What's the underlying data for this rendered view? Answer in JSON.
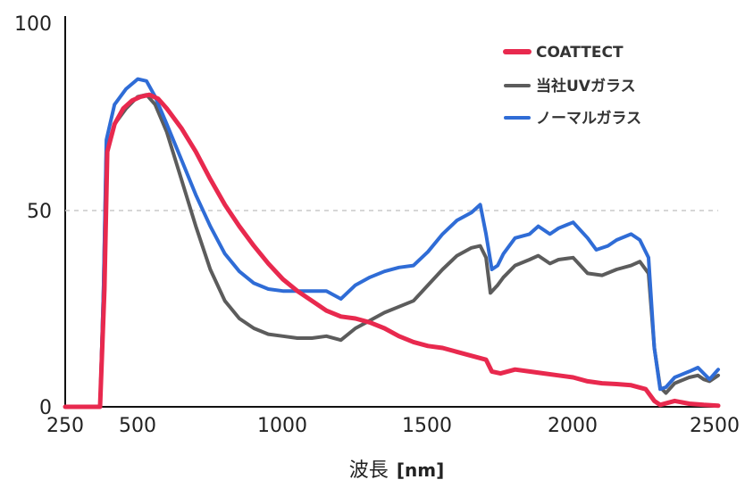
{
  "chart_data": {
    "type": "line",
    "title": "",
    "xlabel": "波長",
    "xlabel_unit": "[nm]",
    "ylabel": "",
    "xlim": [
      250,
      2500
    ],
    "ylim": [
      0,
      100
    ],
    "x_ticks": [
      "250",
      "500",
      "1000",
      "1500",
      "2000",
      "2500"
    ],
    "x_tick_values": [
      250,
      500,
      1000,
      1500,
      2000,
      2500
    ],
    "y_ticks": [
      "0",
      "50",
      "100"
    ],
    "y_tick_values": [
      0,
      50,
      100
    ],
    "grid": "dashed horizontal line at 50",
    "legend_position": "top-right",
    "series": [
      {
        "name": "COATTECT",
        "color": "#e8294e",
        "points": [
          [
            250,
            0
          ],
          [
            370,
            0
          ],
          [
            385,
            30
          ],
          [
            395,
            65
          ],
          [
            420,
            72
          ],
          [
            450,
            76
          ],
          [
            480,
            78
          ],
          [
            510,
            79
          ],
          [
            540,
            79.5
          ],
          [
            570,
            78.5
          ],
          [
            600,
            76
          ],
          [
            650,
            71
          ],
          [
            700,
            65
          ],
          [
            750,
            58
          ],
          [
            800,
            51.5
          ],
          [
            850,
            46
          ],
          [
            900,
            41
          ],
          [
            950,
            36.5
          ],
          [
            1000,
            32.5
          ],
          [
            1050,
            29.5
          ],
          [
            1100,
            27
          ],
          [
            1150,
            24.5
          ],
          [
            1200,
            23
          ],
          [
            1250,
            22.5
          ],
          [
            1300,
            21.5
          ],
          [
            1350,
            20
          ],
          [
            1400,
            18
          ],
          [
            1450,
            16.5
          ],
          [
            1500,
            15.5
          ],
          [
            1550,
            15
          ],
          [
            1600,
            14
          ],
          [
            1650,
            13
          ],
          [
            1700,
            12
          ],
          [
            1720,
            9
          ],
          [
            1750,
            8.5
          ],
          [
            1800,
            9.5
          ],
          [
            1850,
            9
          ],
          [
            1900,
            8.5
          ],
          [
            1950,
            8
          ],
          [
            2000,
            7.5
          ],
          [
            2050,
            6.5
          ],
          [
            2100,
            6
          ],
          [
            2150,
            5.8
          ],
          [
            2200,
            5.5
          ],
          [
            2250,
            4.5
          ],
          [
            2280,
            1.5
          ],
          [
            2300,
            0.5
          ],
          [
            2350,
            1.5
          ],
          [
            2400,
            0.8
          ],
          [
            2450,
            0.5
          ],
          [
            2500,
            0.3
          ]
        ]
      },
      {
        "name": "当社UVガラス",
        "color": "#5c5c5c",
        "points": [
          [
            250,
            0
          ],
          [
            370,
            0
          ],
          [
            382,
            30
          ],
          [
            392,
            65
          ],
          [
            420,
            72
          ],
          [
            460,
            76
          ],
          [
            500,
            79
          ],
          [
            530,
            79.5
          ],
          [
            560,
            77
          ],
          [
            600,
            70
          ],
          [
            650,
            58
          ],
          [
            700,
            46
          ],
          [
            750,
            35
          ],
          [
            800,
            27
          ],
          [
            850,
            22.5
          ],
          [
            900,
            20
          ],
          [
            950,
            18.5
          ],
          [
            1000,
            18
          ],
          [
            1050,
            17.5
          ],
          [
            1100,
            17.5
          ],
          [
            1150,
            18
          ],
          [
            1200,
            17
          ],
          [
            1250,
            20
          ],
          [
            1300,
            22
          ],
          [
            1350,
            24
          ],
          [
            1400,
            25.5
          ],
          [
            1450,
            27
          ],
          [
            1500,
            31
          ],
          [
            1550,
            35
          ],
          [
            1600,
            38.5
          ],
          [
            1650,
            40.5
          ],
          [
            1680,
            41
          ],
          [
            1700,
            38
          ],
          [
            1715,
            29
          ],
          [
            1740,
            31
          ],
          [
            1760,
            33
          ],
          [
            1800,
            36
          ],
          [
            1850,
            37.5
          ],
          [
            1880,
            38.5
          ],
          [
            1920,
            36.5
          ],
          [
            1950,
            37.5
          ],
          [
            2000,
            38
          ],
          [
            2050,
            34
          ],
          [
            2100,
            33.5
          ],
          [
            2150,
            35
          ],
          [
            2200,
            36
          ],
          [
            2230,
            37
          ],
          [
            2260,
            34
          ],
          [
            2280,
            15
          ],
          [
            2300,
            5
          ],
          [
            2320,
            3.5
          ],
          [
            2350,
            6
          ],
          [
            2400,
            7.5
          ],
          [
            2430,
            8
          ],
          [
            2450,
            7
          ],
          [
            2470,
            6.5
          ],
          [
            2500,
            8
          ]
        ]
      },
      {
        "name": "ノーマルガラス",
        "color": "#2f6cd6",
        "points": [
          [
            250,
            0
          ],
          [
            370,
            0
          ],
          [
            382,
            30
          ],
          [
            392,
            68
          ],
          [
            420,
            77
          ],
          [
            460,
            81
          ],
          [
            500,
            83.5
          ],
          [
            530,
            83
          ],
          [
            560,
            79
          ],
          [
            600,
            72
          ],
          [
            650,
            63
          ],
          [
            700,
            54
          ],
          [
            750,
            46
          ],
          [
            800,
            39
          ],
          [
            850,
            34.5
          ],
          [
            900,
            31.5
          ],
          [
            950,
            30
          ],
          [
            1000,
            29.5
          ],
          [
            1050,
            29.5
          ],
          [
            1100,
            29.5
          ],
          [
            1150,
            29.5
          ],
          [
            1200,
            27.5
          ],
          [
            1250,
            31
          ],
          [
            1300,
            33
          ],
          [
            1350,
            34.5
          ],
          [
            1400,
            35.5
          ],
          [
            1450,
            36
          ],
          [
            1500,
            39.5
          ],
          [
            1550,
            44
          ],
          [
            1600,
            47.5
          ],
          [
            1650,
            49.5
          ],
          [
            1680,
            51.5
          ],
          [
            1700,
            44
          ],
          [
            1720,
            35
          ],
          [
            1740,
            36
          ],
          [
            1760,
            39
          ],
          [
            1800,
            43
          ],
          [
            1850,
            44
          ],
          [
            1880,
            46
          ],
          [
            1920,
            44
          ],
          [
            1950,
            45.5
          ],
          [
            2000,
            47
          ],
          [
            2050,
            43
          ],
          [
            2080,
            40
          ],
          [
            2120,
            41
          ],
          [
            2150,
            42.5
          ],
          [
            2200,
            44
          ],
          [
            2230,
            42.5
          ],
          [
            2260,
            38
          ],
          [
            2280,
            15
          ],
          [
            2300,
            4.5
          ],
          [
            2320,
            5
          ],
          [
            2350,
            7.5
          ],
          [
            2400,
            9
          ],
          [
            2430,
            10
          ],
          [
            2450,
            8.5
          ],
          [
            2470,
            7
          ],
          [
            2500,
            9.5
          ]
        ]
      }
    ]
  }
}
